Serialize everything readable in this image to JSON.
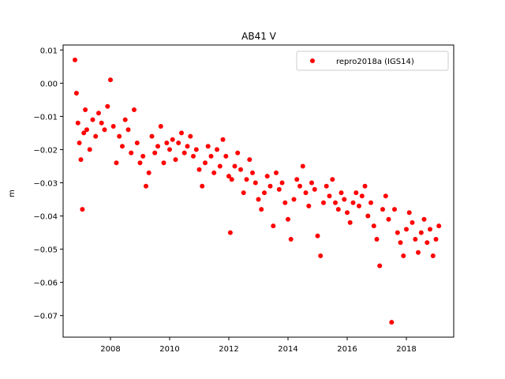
{
  "chart_data": {
    "type": "scatter",
    "title": "AB41 V",
    "xlabel": "",
    "ylabel": "m",
    "xlim": [
      2006.4,
      2019.6
    ],
    "ylim": [
      -0.0765,
      0.0115
    ],
    "x_ticks": [
      2008,
      2010,
      2012,
      2014,
      2016,
      2018
    ],
    "x_tick_labels": [
      "2008",
      "2010",
      "2012",
      "2014",
      "2016",
      "2018"
    ],
    "y_ticks": [
      0.01,
      0.0,
      -0.01,
      -0.02,
      -0.03,
      -0.04,
      -0.05,
      -0.06,
      -0.07
    ],
    "y_tick_labels": [
      "0.01",
      "0.00",
      "−0.01",
      "−0.02",
      "−0.03",
      "−0.04",
      "−0.05",
      "−0.06",
      "−0.07"
    ],
    "grid": false,
    "legend_position": "upper right",
    "series": [
      {
        "name": "repro2018a (IGS14)",
        "color": "#ff0000",
        "marker": "circle",
        "x": [
          2006.8,
          2006.85,
          2006.9,
          2006.95,
          2007.0,
          2007.05,
          2007.1,
          2007.15,
          2007.2,
          2007.3,
          2007.4,
          2007.5,
          2007.6,
          2007.7,
          2007.8,
          2007.9,
          2008.0,
          2008.1,
          2008.2,
          2008.3,
          2008.4,
          2008.5,
          2008.6,
          2008.7,
          2008.8,
          2008.9,
          2009.0,
          2009.1,
          2009.2,
          2009.3,
          2009.4,
          2009.5,
          2009.6,
          2009.7,
          2009.8,
          2009.9,
          2010.0,
          2010.1,
          2010.2,
          2010.3,
          2010.4,
          2010.5,
          2010.6,
          2010.7,
          2010.8,
          2010.9,
          2011.0,
          2011.1,
          2011.2,
          2011.3,
          2011.4,
          2011.5,
          2011.6,
          2011.7,
          2011.8,
          2011.9,
          2012.0,
          2012.05,
          2012.1,
          2012.2,
          2012.3,
          2012.4,
          2012.5,
          2012.6,
          2012.7,
          2012.8,
          2012.9,
          2013.0,
          2013.1,
          2013.2,
          2013.3,
          2013.4,
          2013.5,
          2013.6,
          2013.7,
          2013.8,
          2013.9,
          2014.0,
          2014.1,
          2014.2,
          2014.3,
          2014.4,
          2014.5,
          2014.6,
          2014.7,
          2014.8,
          2014.9,
          2015.0,
          2015.1,
          2015.2,
          2015.3,
          2015.4,
          2015.5,
          2015.6,
          2015.7,
          2015.8,
          2015.9,
          2016.0,
          2016.1,
          2016.2,
          2016.3,
          2016.4,
          2016.5,
          2016.6,
          2016.7,
          2016.8,
          2016.9,
          2017.0,
          2017.1,
          2017.2,
          2017.3,
          2017.4,
          2017.5,
          2017.6,
          2017.7,
          2017.8,
          2017.9,
          2018.0,
          2018.1,
          2018.2,
          2018.3,
          2018.4,
          2018.5,
          2018.6,
          2018.7,
          2018.8,
          2018.9,
          2019.0,
          2019.1
        ],
        "y": [
          0.007,
          -0.003,
          -0.012,
          -0.018,
          -0.023,
          -0.038,
          -0.015,
          -0.008,
          -0.014,
          -0.02,
          -0.011,
          -0.016,
          -0.009,
          -0.012,
          -0.014,
          -0.007,
          0.001,
          -0.013,
          -0.024,
          -0.016,
          -0.019,
          -0.011,
          -0.014,
          -0.021,
          -0.008,
          -0.018,
          -0.024,
          -0.022,
          -0.031,
          -0.027,
          -0.016,
          -0.021,
          -0.019,
          -0.013,
          -0.024,
          -0.018,
          -0.02,
          -0.017,
          -0.023,
          -0.018,
          -0.015,
          -0.021,
          -0.019,
          -0.016,
          -0.022,
          -0.02,
          -0.026,
          -0.031,
          -0.024,
          -0.019,
          -0.022,
          -0.027,
          -0.02,
          -0.025,
          -0.017,
          -0.022,
          -0.028,
          -0.045,
          -0.029,
          -0.025,
          -0.021,
          -0.026,
          -0.033,
          -0.029,
          -0.023,
          -0.027,
          -0.03,
          -0.035,
          -0.038,
          -0.033,
          -0.028,
          -0.031,
          -0.043,
          -0.027,
          -0.032,
          -0.03,
          -0.036,
          -0.041,
          -0.047,
          -0.035,
          -0.029,
          -0.031,
          -0.025,
          -0.033,
          -0.037,
          -0.03,
          -0.032,
          -0.046,
          -0.052,
          -0.036,
          -0.031,
          -0.034,
          -0.029,
          -0.036,
          -0.038,
          -0.033,
          -0.035,
          -0.039,
          -0.042,
          -0.036,
          -0.033,
          -0.037,
          -0.034,
          -0.031,
          -0.04,
          -0.036,
          -0.043,
          -0.047,
          -0.055,
          -0.038,
          -0.034,
          -0.041,
          -0.072,
          -0.038,
          -0.045,
          -0.048,
          -0.052,
          -0.044,
          -0.039,
          -0.042,
          -0.047,
          -0.051,
          -0.045,
          -0.041,
          -0.048,
          -0.044,
          -0.052,
          -0.047,
          -0.043
        ]
      }
    ]
  }
}
